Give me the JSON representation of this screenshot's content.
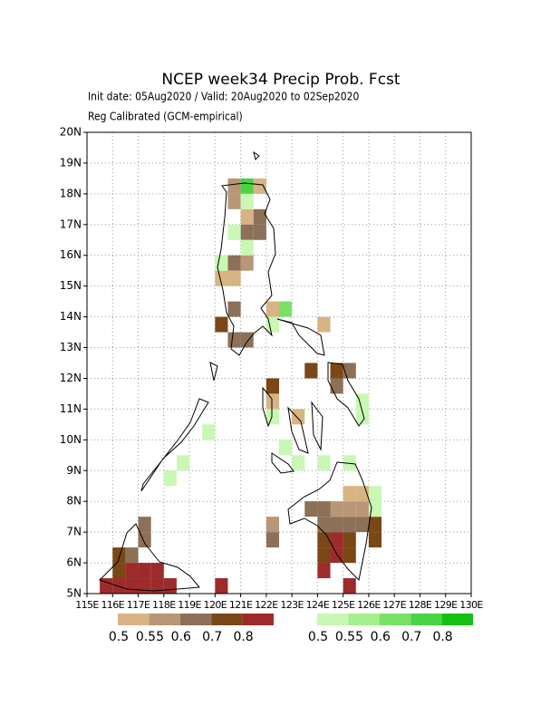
{
  "header": {
    "title": "NCEP week34 Precip Prob. Fcst",
    "subtitle": "Init date: 05Aug2020 / Valid: 20Aug2020 to 02Sep2020",
    "method": "Reg Calibrated (GCM-empirical)"
  },
  "map": {
    "xlim": [
      115,
      130
    ],
    "ylim": [
      5,
      20
    ],
    "xticks": [
      {
        "value": 115,
        "label": "115E"
      },
      {
        "value": 116,
        "label": "116E"
      },
      {
        "value": 117,
        "label": "117E"
      },
      {
        "value": 118,
        "label": "118E"
      },
      {
        "value": 119,
        "label": "119E"
      },
      {
        "value": 120,
        "label": "120E"
      },
      {
        "value": 121,
        "label": "121E"
      },
      {
        "value": 122,
        "label": "122E"
      },
      {
        "value": 123,
        "label": "123E"
      },
      {
        "value": 124,
        "label": "124E"
      },
      {
        "value": 125,
        "label": "125E"
      },
      {
        "value": 126,
        "label": "126E"
      },
      {
        "value": 127,
        "label": "127E"
      },
      {
        "value": 128,
        "label": "128E"
      },
      {
        "value": 129,
        "label": "129E"
      },
      {
        "value": 130,
        "label": "130E"
      }
    ],
    "yticks": [
      {
        "value": 5,
        "label": "5N"
      },
      {
        "value": 6,
        "label": "6N"
      },
      {
        "value": 7,
        "label": "7N"
      },
      {
        "value": 8,
        "label": "8N"
      },
      {
        "value": 9,
        "label": "9N"
      },
      {
        "value": 10,
        "label": "10N"
      },
      {
        "value": 11,
        "label": "11N"
      },
      {
        "value": 12,
        "label": "12N"
      },
      {
        "value": 13,
        "label": "13N"
      },
      {
        "value": 14,
        "label": "14N"
      },
      {
        "value": 15,
        "label": "15N"
      },
      {
        "value": 16,
        "label": "16N"
      },
      {
        "value": 17,
        "label": "17N"
      },
      {
        "value": 18,
        "label": "18N"
      },
      {
        "value": 19,
        "label": "19N"
      },
      {
        "value": 20,
        "label": "20N"
      }
    ],
    "grid": true,
    "cell_size": 0.5,
    "dry_cells": [
      {
        "lon": 115.5,
        "lat": 5,
        "prob": 0.8
      },
      {
        "lon": 116,
        "lat": 5,
        "prob": 0.8
      },
      {
        "lon": 116.5,
        "lat": 5,
        "prob": 0.8
      },
      {
        "lon": 117,
        "lat": 5,
        "prob": 0.8
      },
      {
        "lon": 117.5,
        "lat": 5,
        "prob": 0.8
      },
      {
        "lon": 118,
        "lat": 5,
        "prob": 0.8
      },
      {
        "lon": 116.5,
        "lat": 5.5,
        "prob": 0.8
      },
      {
        "lon": 117,
        "lat": 5.5,
        "prob": 0.8
      },
      {
        "lon": 117.5,
        "lat": 5.5,
        "prob": 0.8
      },
      {
        "lon": 116,
        "lat": 5.5,
        "prob": 0.7
      },
      {
        "lon": 116,
        "lat": 6,
        "prob": 0.7
      },
      {
        "lon": 116.5,
        "lat": 6,
        "prob": 0.6
      },
      {
        "lon": 117,
        "lat": 6.5,
        "prob": 0.6
      },
      {
        "lon": 117,
        "lat": 7,
        "prob": 0.6
      },
      {
        "lon": 120,
        "lat": 5,
        "prob": 0.8
      },
      {
        "lon": 124,
        "lat": 5.5,
        "prob": 0.8
      },
      {
        "lon": 124.5,
        "lat": 6,
        "prob": 0.8
      },
      {
        "lon": 124.5,
        "lat": 6.5,
        "prob": 0.8
      },
      {
        "lon": 125,
        "lat": 5,
        "prob": 0.8
      },
      {
        "lon": 124,
        "lat": 6,
        "prob": 0.7
      },
      {
        "lon": 124,
        "lat": 6.5,
        "prob": 0.7
      },
      {
        "lon": 125,
        "lat": 6,
        "prob": 0.7
      },
      {
        "lon": 125,
        "lat": 6.5,
        "prob": 0.7
      },
      {
        "lon": 126,
        "lat": 6.5,
        "prob": 0.7
      },
      {
        "lon": 126,
        "lat": 7,
        "prob": 0.7
      },
      {
        "lon": 124,
        "lat": 7,
        "prob": 0.6
      },
      {
        "lon": 124.5,
        "lat": 7,
        "prob": 0.6
      },
      {
        "lon": 125,
        "lat": 7,
        "prob": 0.6
      },
      {
        "lon": 125.5,
        "lat": 7,
        "prob": 0.6
      },
      {
        "lon": 123.5,
        "lat": 7.5,
        "prob": 0.6
      },
      {
        "lon": 124,
        "lat": 7.5,
        "prob": 0.6
      },
      {
        "lon": 124.5,
        "lat": 7.5,
        "prob": 0.55
      },
      {
        "lon": 125,
        "lat": 7.5,
        "prob": 0.55
      },
      {
        "lon": 125.5,
        "lat": 7.5,
        "prob": 0.55
      },
      {
        "lon": 125,
        "lat": 8,
        "prob": 0.5
      },
      {
        "lon": 125.5,
        "lat": 8,
        "prob": 0.5
      },
      {
        "lon": 122,
        "lat": 6.5,
        "prob": 0.6
      },
      {
        "lon": 122,
        "lat": 7,
        "prob": 0.55
      },
      {
        "lon": 120.5,
        "lat": 18,
        "prob": 0.55
      },
      {
        "lon": 121.5,
        "lat": 18,
        "prob": 0.5
      },
      {
        "lon": 120.5,
        "lat": 17.5,
        "prob": 0.55
      },
      {
        "lon": 121,
        "lat": 17,
        "prob": 0.5
      },
      {
        "lon": 121.5,
        "lat": 17,
        "prob": 0.6
      },
      {
        "lon": 121,
        "lat": 16.5,
        "prob": 0.6
      },
      {
        "lon": 121.5,
        "lat": 16.5,
        "prob": 0.6
      },
      {
        "lon": 120.5,
        "lat": 15.5,
        "prob": 0.6
      },
      {
        "lon": 121,
        "lat": 15.5,
        "prob": 0.55
      },
      {
        "lon": 120,
        "lat": 15,
        "prob": 0.5
      },
      {
        "lon": 120.5,
        "lat": 15,
        "prob": 0.5
      },
      {
        "lon": 120.5,
        "lat": 14,
        "prob": 0.6
      },
      {
        "lon": 122,
        "lat": 14,
        "prob": 0.5
      },
      {
        "lon": 120,
        "lat": 13.5,
        "prob": 0.7
      },
      {
        "lon": 120.5,
        "lat": 13,
        "prob": 0.6
      },
      {
        "lon": 121,
        "lat": 13,
        "prob": 0.6
      },
      {
        "lon": 124,
        "lat": 13.5,
        "prob": 0.5
      },
      {
        "lon": 122,
        "lat": 11.5,
        "prob": 0.7
      },
      {
        "lon": 122,
        "lat": 11,
        "prob": 0.5
      },
      {
        "lon": 123,
        "lat": 10.5,
        "prob": 0.5
      },
      {
        "lon": 123.5,
        "lat": 12,
        "prob": 0.7
      },
      {
        "lon": 124.5,
        "lat": 12,
        "prob": 0.7
      },
      {
        "lon": 125,
        "lat": 12,
        "prob": 0.6
      },
      {
        "lon": 124.5,
        "lat": 11.5,
        "prob": 0.6
      }
    ],
    "wet_cells": [
      {
        "lon": 121,
        "lat": 18,
        "prob": 0.7
      },
      {
        "lon": 121,
        "lat": 17.5,
        "prob": 0.5
      },
      {
        "lon": 120.5,
        "lat": 16.5,
        "prob": 0.5
      },
      {
        "lon": 121,
        "lat": 16,
        "prob": 0.5
      },
      {
        "lon": 120,
        "lat": 15.5,
        "prob": 0.5
      },
      {
        "lon": 122.5,
        "lat": 14,
        "prob": 0.6
      },
      {
        "lon": 122,
        "lat": 13.5,
        "prob": 0.5
      },
      {
        "lon": 124,
        "lat": 9,
        "prob": 0.5
      },
      {
        "lon": 125,
        "lat": 9,
        "prob": 0.5
      },
      {
        "lon": 126,
        "lat": 8,
        "prob": 0.5
      },
      {
        "lon": 126,
        "lat": 7.5,
        "prob": 0.5
      },
      {
        "lon": 125.5,
        "lat": 10.5,
        "prob": 0.5
      },
      {
        "lon": 122,
        "lat": 10.5,
        "prob": 0.5
      },
      {
        "lon": 122.5,
        "lat": 9.5,
        "prob": 0.5
      },
      {
        "lon": 123,
        "lat": 9,
        "prob": 0.5
      },
      {
        "lon": 118.5,
        "lat": 9,
        "prob": 0.5
      },
      {
        "lon": 119.5,
        "lat": 10,
        "prob": 0.5
      },
      {
        "lon": 125.5,
        "lat": 11,
        "prob": 0.5
      },
      {
        "lon": 118,
        "lat": 8.5,
        "prob": 0.5
      }
    ]
  },
  "colorbars": [
    {
      "levels": [
        0.5,
        0.55,
        0.6,
        0.7,
        0.8
      ],
      "colors": [
        "#d8b484",
        "#b89676",
        "#8c7058",
        "#7a4716",
        "#9e2b2b"
      ]
    },
    {
      "levels": [
        0.5,
        0.55,
        0.6,
        0.7,
        0.8
      ],
      "colors": [
        "#c8f8b4",
        "#a4f08c",
        "#78e266",
        "#48d444",
        "#14c014"
      ]
    }
  ]
}
